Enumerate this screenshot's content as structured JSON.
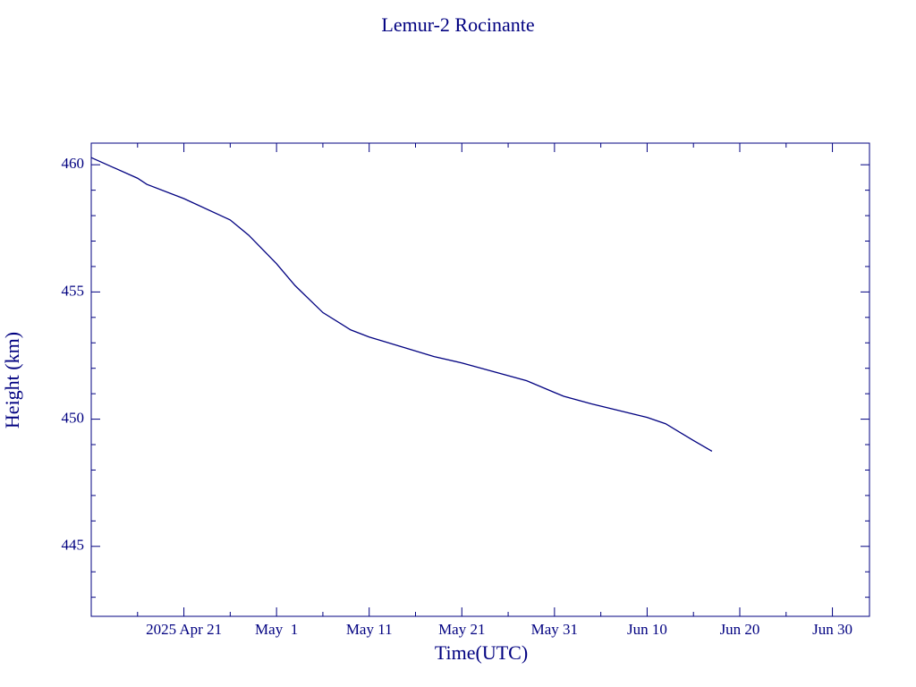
{
  "chart_data": {
    "type": "line",
    "title": "Lemur-2 Rocinante",
    "x_label": "Time(UTC)",
    "y_label": "Height (km)",
    "color": "#000080",
    "x": [
      "2025-04-11",
      "2025-04-16",
      "2025-04-17",
      "2025-04-21",
      "2025-04-26",
      "2025-04-28",
      "2025-05-01",
      "2025-05-03",
      "2025-05-06",
      "2025-05-09",
      "2025-05-11",
      "2025-05-18",
      "2025-05-21",
      "2025-05-28",
      "2025-05-31",
      "2025-06-01",
      "2025-06-04",
      "2025-06-10",
      "2025-06-12",
      "2025-06-15",
      "2025-06-17"
    ],
    "series": [
      {
        "name": "Height",
        "color": "#000080",
        "values": [
          460.28,
          459.47,
          459.23,
          458.67,
          457.83,
          457.23,
          456.11,
          455.25,
          454.19,
          453.51,
          453.23,
          452.46,
          452.21,
          451.51,
          451.05,
          450.9,
          450.6,
          450.07,
          449.82,
          449.16,
          448.74
        ]
      }
    ],
    "xlim": [
      "2025-04-11",
      "2025-07-04"
    ],
    "xticks": [
      {
        "value": "2025-04-21",
        "label": "2025 Apr 21"
      },
      {
        "value": "2025-05-01",
        "label": "May  1"
      },
      {
        "value": "2025-05-11",
        "label": "May 11"
      },
      {
        "value": "2025-05-21",
        "label": "May 21"
      },
      {
        "value": "2025-05-31",
        "label": "May 31"
      },
      {
        "value": "2025-06-10",
        "label": "Jun 10"
      },
      {
        "value": "2025-06-20",
        "label": "Jun 20"
      },
      {
        "value": "2025-06-30",
        "label": "Jun 30"
      }
    ],
    "xminor_ticks": [
      "2025-04-16",
      "2025-04-26",
      "2025-05-06",
      "2025-05-16",
      "2025-05-26",
      "2025-06-05",
      "2025-06-15",
      "2025-06-25"
    ],
    "ylim": [
      442.25,
      460.85
    ],
    "yticks": [
      445,
      450,
      455,
      460
    ],
    "yminor_ticks": [
      443,
      444,
      446,
      447,
      448,
      449,
      451,
      452,
      453,
      454,
      456,
      457,
      458,
      459
    ]
  }
}
